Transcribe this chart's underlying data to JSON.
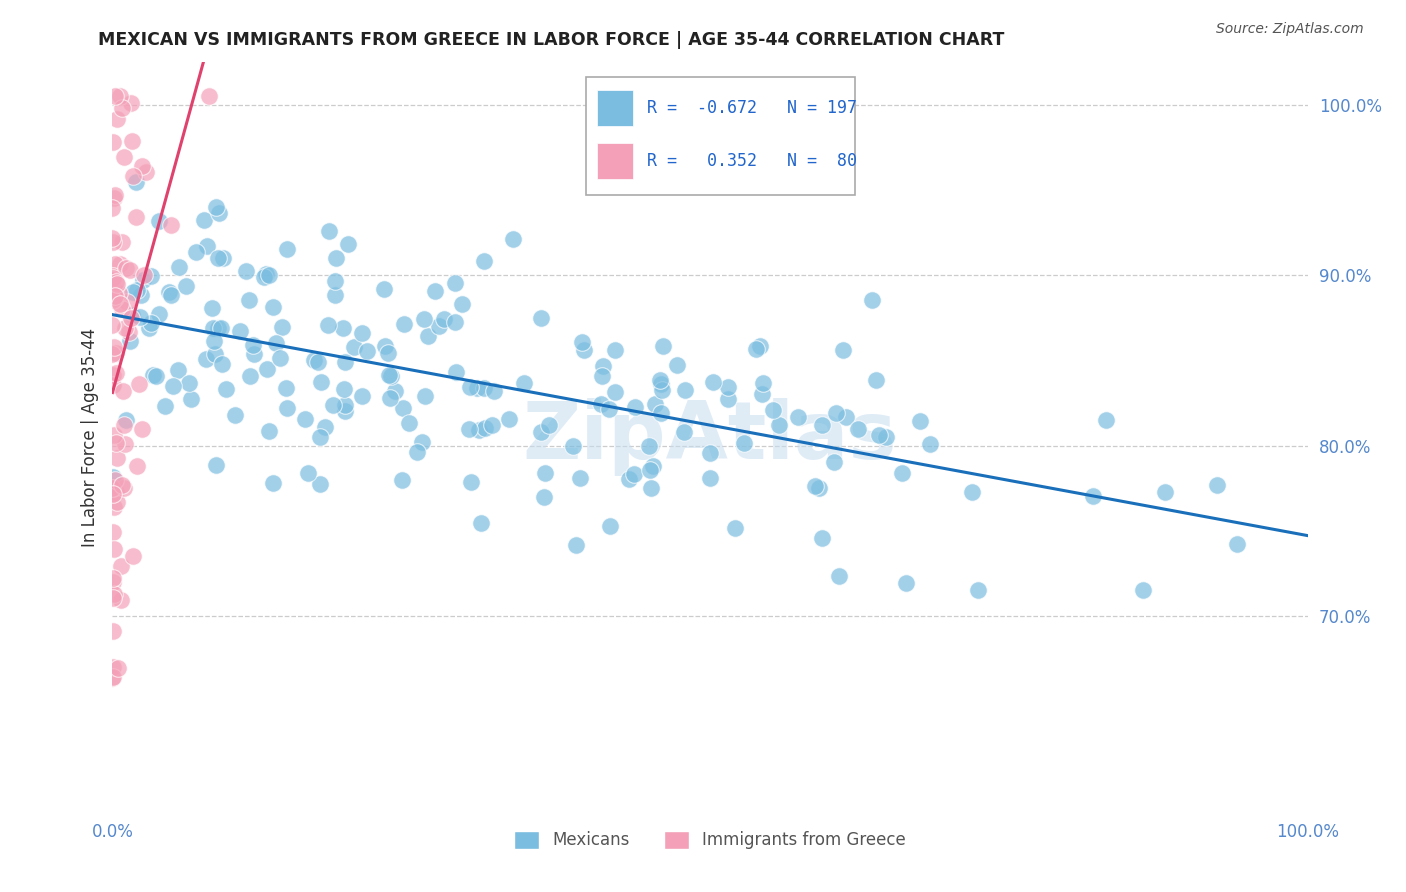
{
  "title": "MEXICAN VS IMMIGRANTS FROM GREECE IN LABOR FORCE | AGE 35-44 CORRELATION CHART",
  "source": "Source: ZipAtlas.com",
  "ylabel": "In Labor Force | Age 35-44",
  "blue_r": -0.672,
  "blue_n": 197,
  "pink_r": 0.352,
  "pink_n": 80,
  "blue_color": "#7bbde0",
  "pink_color": "#f4a0b8",
  "blue_edge_color": "#7bbde0",
  "pink_edge_color": "#f4a0b8",
  "blue_line_color": "#1a6fba",
  "pink_line_color": "#e0426e",
  "legend_label_blue": "Mexicans",
  "legend_label_pink": "Immigrants from Greece",
  "watermark": "ZipAtlas",
  "blue_seed": 12,
  "pink_seed": 99,
  "xlim": [
    0.0,
    1.0
  ],
  "ylim": [
    0.585,
    1.025
  ],
  "yticks": [
    0.7,
    0.8,
    0.9,
    1.0
  ],
  "ytick_labels": [
    "70.0%",
    "80.0%",
    "90.0%",
    "100.0%"
  ],
  "grid_color": "#cccccc",
  "title_color": "#222222",
  "tick_color": "#5588cc",
  "legend_box_color": "#cccccc",
  "legend_text_color": "#2266cc"
}
